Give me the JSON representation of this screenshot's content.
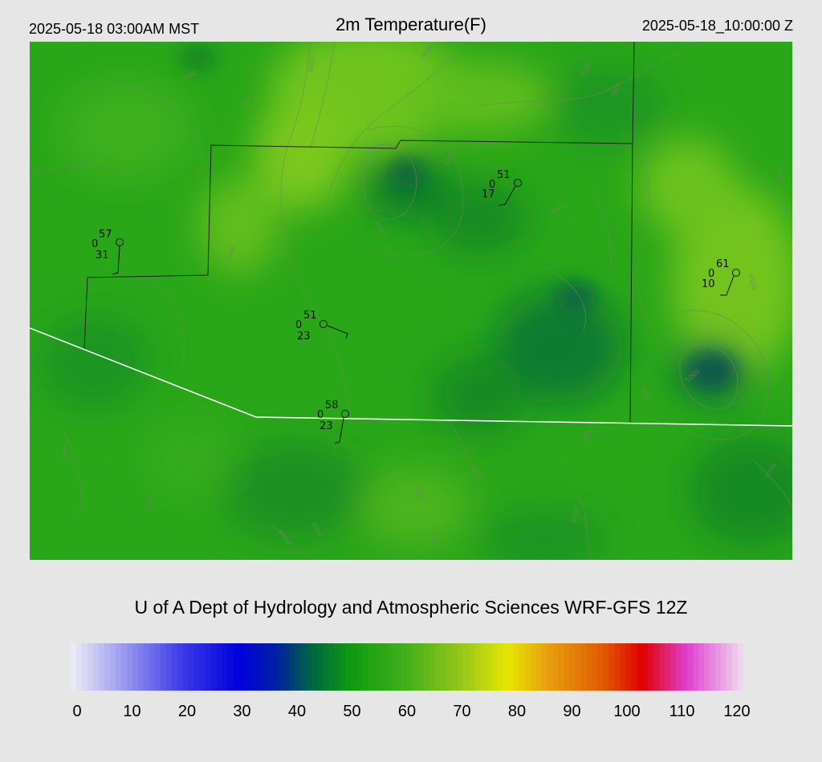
{
  "header": {
    "local_time": "2025-05-18 03:00AM MST",
    "title": "2m Temperature(F)",
    "utc_time": "2025-05-18_10:00:00 Z"
  },
  "footer": {
    "credit": "U of A Dept of Hydrology and Atmospheric Sciences WRF-GFS 12Z"
  },
  "colorbar": {
    "tick_labels": [
      "0",
      "10",
      "20",
      "30",
      "40",
      "50",
      "60",
      "70",
      "80",
      "90",
      "100",
      "110",
      "120"
    ],
    "range": [
      0,
      120
    ],
    "colors": {
      "0": "#eeeef6",
      "20": "#3a3ae8",
      "30": "#0000dd",
      "37": "#0022a0",
      "43": "#006640",
      "50": "#0f9a12",
      "60": "#44b01a",
      "70": "#99c81a",
      "78": "#e6e600",
      "85": "#e8a010",
      "95": "#e05a00",
      "102": "#e00000",
      "110": "#e040d0",
      "120": "#f0dcf0"
    }
  },
  "map": {
    "base_color": "#2aa619",
    "contour_labels": [
      "2500",
      "3000",
      "3500",
      "4000",
      "4500",
      "5000",
      "5500"
    ],
    "stations": [
      {
        "id": "st1",
        "temp": "57",
        "pcp": "0",
        "dew": "31"
      },
      {
        "id": "st2",
        "temp": "51",
        "pcp": "0",
        "dew": "17"
      },
      {
        "id": "st3",
        "temp": "61",
        "pcp": "0",
        "dew": "10"
      },
      {
        "id": "st4",
        "temp": "51",
        "pcp": "0",
        "dew": "23"
      },
      {
        "id": "st5",
        "temp": "58",
        "pcp": "0",
        "dew": "23"
      }
    ]
  }
}
